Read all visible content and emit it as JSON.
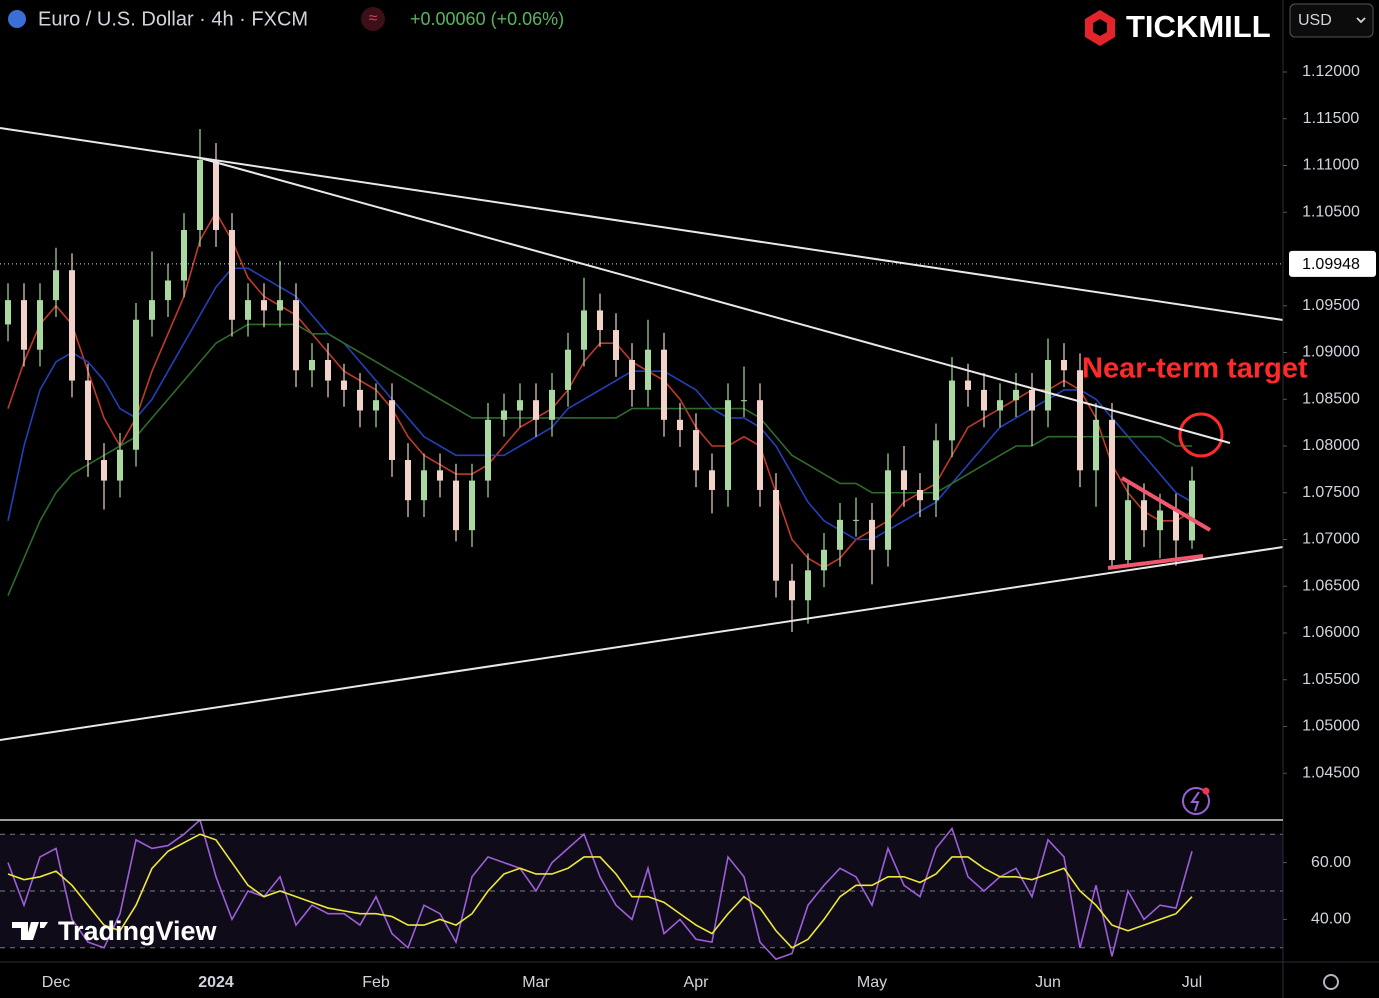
{
  "brand": "TICKMILL",
  "currency": "USD",
  "watermark": "TradingView",
  "chart_data": [
    {
      "type": "candlestick",
      "title": "Euro / U.S. Dollar · 4h · FXCM",
      "change": "+0.00060 (+0.06%)",
      "annotation": "Near-term target",
      "categories": [
        null,
        null,
        null,
        "Dec",
        null,
        null,
        null,
        null,
        null,
        null,
        null,
        null,
        null,
        "2024",
        null,
        null,
        null,
        null,
        null,
        null,
        null,
        null,
        null,
        "Feb",
        null,
        null,
        null,
        null,
        null,
        null,
        null,
        null,
        null,
        "Mar",
        null,
        null,
        null,
        null,
        null,
        null,
        null,
        null,
        null,
        "Apr",
        null,
        null,
        null,
        null,
        null,
        null,
        null,
        null,
        null,
        null,
        "May",
        null,
        null,
        null,
        null,
        null,
        null,
        null,
        null,
        null,
        null,
        "Jun",
        null,
        null,
        null,
        null,
        null,
        null,
        null,
        null,
        "Jul"
      ],
      "open": [
        1.093,
        1.0956,
        1.0903,
        1.0956,
        1.0988,
        1.087,
        1.0785,
        1.0763,
        1.0796,
        1.0935,
        1.0956,
        1.0977,
        1.1031,
        1.1106,
        1.1031,
        1.0935,
        1.0956,
        1.0945,
        1.0956,
        1.0881,
        1.0892,
        1.087,
        1.086,
        1.0838,
        1.0849,
        1.0785,
        1.0742,
        1.0774,
        1.0763,
        1.071,
        1.0763,
        1.0828,
        1.0838,
        1.0849,
        1.0828,
        1.086,
        1.0903,
        1.0945,
        1.0924,
        1.0892,
        1.086,
        1.0903,
        1.0828,
        1.0817,
        1.0774,
        1.0753,
        1.0849,
        1.0849,
        1.0753,
        1.0656,
        1.0635,
        1.0667,
        1.0689,
        1.0721,
        1.0721,
        1.0689,
        1.0774,
        1.0753,
        1.0742,
        1.0806,
        1.087,
        1.086,
        1.0838,
        1.0849,
        1.086,
        1.0838,
        1.0892,
        1.0881,
        1.0774,
        1.0828,
        1.0678,
        1.0742,
        1.071,
        1.0731,
        1.0699
      ],
      "high": [
        1.0974,
        1.0974,
        1.0974,
        1.1012,
        1.1006,
        1.0888,
        1.0803,
        1.0814,
        1.0953,
        1.1008,
        1.0995,
        1.1049,
        1.1139,
        1.1124,
        1.1049,
        1.0974,
        1.0974,
        1.0998,
        1.0974,
        1.091,
        1.091,
        1.0888,
        1.0878,
        1.0867,
        1.0867,
        1.0803,
        1.0792,
        1.0792,
        1.0781,
        1.0781,
        1.0846,
        1.0856,
        1.0867,
        1.0867,
        1.0878,
        1.0921,
        1.098,
        1.0963,
        1.0942,
        1.091,
        1.0935,
        1.0921,
        1.0846,
        1.0835,
        1.0792,
        1.0867,
        1.0885,
        1.0867,
        1.0771,
        1.0674,
        1.0685,
        1.0707,
        1.0739,
        1.0745,
        1.0739,
        1.0792,
        1.08,
        1.0771,
        1.0824,
        1.0895,
        1.0888,
        1.0878,
        1.0867,
        1.0878,
        1.0878,
        1.0915,
        1.091,
        1.0899,
        1.0846,
        1.0846,
        1.076,
        1.076,
        1.0749,
        1.0749,
        1.0778
      ],
      "low": [
        1.0912,
        1.0885,
        1.0885,
        1.0938,
        1.0852,
        1.0767,
        1.0732,
        1.0745,
        1.0778,
        1.0917,
        1.0938,
        1.0959,
        1.1013,
        1.1013,
        1.0917,
        1.0917,
        1.0927,
        1.0927,
        1.0863,
        1.0863,
        1.0852,
        1.0842,
        1.082,
        1.082,
        1.0767,
        1.0724,
        1.0724,
        1.0745,
        1.0698,
        1.0692,
        1.0745,
        1.081,
        1.082,
        1.081,
        1.081,
        1.0842,
        1.0885,
        1.0906,
        1.0874,
        1.0842,
        1.0842,
        1.081,
        1.0799,
        1.0756,
        1.0728,
        1.0735,
        1.0831,
        1.0735,
        1.0638,
        1.0601,
        1.061,
        1.0649,
        1.0671,
        1.0703,
        1.0652,
        1.0671,
        1.0735,
        1.0724,
        1.0724,
        1.0788,
        1.0842,
        1.082,
        1.082,
        1.0831,
        1.08,
        1.082,
        1.0863,
        1.0756,
        1.0735,
        1.0668,
        1.067,
        1.0692,
        1.068,
        1.0672,
        1.069
      ],
      "close": [
        1.0956,
        1.0903,
        1.0956,
        1.0988,
        1.087,
        1.0785,
        1.0763,
        1.0796,
        1.0935,
        1.0956,
        1.0977,
        1.1031,
        1.1106,
        1.1031,
        1.0935,
        1.0956,
        1.0945,
        1.0956,
        1.0881,
        1.0892,
        1.087,
        1.086,
        1.0838,
        1.0849,
        1.0785,
        1.0742,
        1.0774,
        1.0763,
        1.071,
        1.0763,
        1.0828,
        1.0838,
        1.0849,
        1.0828,
        1.086,
        1.0903,
        1.0945,
        1.0924,
        1.0892,
        1.086,
        1.0903,
        1.0828,
        1.0817,
        1.0774,
        1.0753,
        1.0849,
        1.0849,
        1.0753,
        1.0656,
        1.0635,
        1.0667,
        1.0689,
        1.0721,
        1.0721,
        1.0689,
        1.0774,
        1.0753,
        1.0742,
        1.0806,
        1.087,
        1.086,
        1.0838,
        1.0849,
        1.086,
        1.0838,
        1.0892,
        1.0881,
        1.0774,
        1.0828,
        1.0678,
        1.0742,
        1.071,
        1.0731,
        1.0699,
        1.0763
      ],
      "up_color": "#a9d9a0",
      "down_color": "#f1d3c9",
      "series": [
        {
          "color": "#c0392b",
          "values": [
            1.084,
            1.089,
            1.093,
            1.095,
            1.093,
            1.088,
            1.083,
            1.08,
            1.083,
            1.088,
            1.092,
            1.096,
            1.102,
            1.105,
            1.102,
            1.098,
            1.096,
            1.095,
            1.094,
            1.092,
            1.09,
            1.088,
            1.087,
            1.086,
            1.084,
            1.081,
            1.079,
            1.078,
            1.077,
            1.077,
            1.078,
            1.08,
            1.082,
            1.083,
            1.084,
            1.086,
            1.089,
            1.091,
            1.091,
            1.089,
            1.088,
            1.087,
            1.085,
            1.082,
            1.08,
            1.08,
            1.081,
            1.08,
            1.075,
            1.07,
            1.068,
            1.067,
            1.068,
            1.07,
            1.071,
            1.072,
            1.074,
            1.075,
            1.076,
            1.079,
            1.082,
            1.083,
            1.084,
            1.085,
            1.086,
            1.086,
            1.087,
            1.086,
            1.083,
            1.078,
            1.075,
            1.073,
            1.072,
            1.072,
            1.073
          ]
        },
        {
          "color": "#2340b8",
          "values": [
            1.072,
            1.08,
            1.086,
            1.089,
            1.09,
            1.089,
            1.087,
            1.084,
            1.083,
            1.085,
            1.088,
            1.091,
            1.094,
            1.097,
            1.099,
            1.099,
            1.098,
            1.097,
            1.096,
            1.094,
            1.092,
            1.091,
            1.089,
            1.087,
            1.085,
            1.083,
            1.081,
            1.08,
            1.079,
            1.079,
            1.079,
            1.079,
            1.08,
            1.081,
            1.082,
            1.084,
            1.085,
            1.086,
            1.087,
            1.088,
            1.088,
            1.088,
            1.087,
            1.086,
            1.084,
            1.083,
            1.083,
            1.082,
            1.08,
            1.077,
            1.074,
            1.072,
            1.071,
            1.07,
            1.07,
            1.071,
            1.072,
            1.073,
            1.074,
            1.076,
            1.078,
            1.08,
            1.082,
            1.083,
            1.084,
            1.085,
            1.086,
            1.086,
            1.085,
            1.083,
            1.081,
            1.079,
            1.077,
            1.075,
            1.074
          ]
        },
        {
          "color": "#2f6b2a",
          "values": [
            1.064,
            1.068,
            1.072,
            1.075,
            1.077,
            1.078,
            1.079,
            1.08,
            1.081,
            1.083,
            1.085,
            1.087,
            1.089,
            1.091,
            1.092,
            1.093,
            1.093,
            1.093,
            1.093,
            1.092,
            1.092,
            1.091,
            1.09,
            1.089,
            1.088,
            1.087,
            1.086,
            1.085,
            1.084,
            1.083,
            1.083,
            1.083,
            1.083,
            1.083,
            1.083,
            1.083,
            1.083,
            1.083,
            1.083,
            1.084,
            1.084,
            1.084,
            1.084,
            1.084,
            1.084,
            1.084,
            1.084,
            1.083,
            1.081,
            1.079,
            1.078,
            1.077,
            1.076,
            1.076,
            1.075,
            1.075,
            1.075,
            1.075,
            1.075,
            1.076,
            1.077,
            1.078,
            1.079,
            1.08,
            1.08,
            1.081,
            1.081,
            1.081,
            1.081,
            1.081,
            1.081,
            1.081,
            1.081,
            1.08,
            1.08
          ]
        }
      ],
      "ylim": [
        1.04,
        1.1277
      ],
      "yticks": [
        {
          "value": 1.12,
          "label": "1.12000"
        },
        {
          "value": 1.115,
          "label": "1.11500"
        },
        {
          "value": 1.11,
          "label": "1.11000"
        },
        {
          "value": 1.105,
          "label": "1.10500"
        },
        {
          "value": 1.095,
          "label": "1.09500"
        },
        {
          "value": 1.09,
          "label": "1.09000"
        },
        {
          "value": 1.085,
          "label": "1.08500"
        },
        {
          "value": 1.08,
          "label": "1.08000"
        },
        {
          "value": 1.075,
          "label": "1.07500"
        },
        {
          "value": 1.07,
          "label": "1.07000"
        },
        {
          "value": 1.065,
          "label": "1.06500"
        },
        {
          "value": 1.06,
          "label": "1.06000"
        },
        {
          "value": 1.055,
          "label": "1.05500"
        },
        {
          "value": 1.05,
          "label": "1.05000"
        },
        {
          "value": 1.045,
          "label": "1.04500"
        }
      ],
      "last_price": 1.09948,
      "grid": false
    },
    {
      "type": "line",
      "series": [
        {
          "color": "#9b5fd8",
          "values": [
            60,
            45,
            62,
            65,
            40,
            32,
            30,
            42,
            68,
            65,
            66,
            70,
            75,
            55,
            40,
            50,
            48,
            55,
            38,
            45,
            42,
            42,
            38,
            48,
            35,
            30,
            45,
            42,
            32,
            55,
            62,
            60,
            58,
            50,
            60,
            65,
            70,
            55,
            45,
            40,
            58,
            35,
            40,
            33,
            32,
            62,
            55,
            32,
            26,
            28,
            45,
            52,
            58,
            55,
            45,
            65,
            52,
            48,
            65,
            72,
            55,
            50,
            55,
            58,
            48,
            68,
            62,
            30,
            52,
            27,
            50,
            40,
            45,
            44,
            64
          ]
        },
        {
          "color": "#ece83a",
          "values": [
            56,
            54,
            55,
            57,
            52,
            45,
            38,
            36,
            45,
            58,
            64,
            67,
            70,
            68,
            60,
            52,
            48,
            50,
            48,
            46,
            44,
            43,
            42,
            42,
            41,
            38,
            38,
            40,
            38,
            42,
            50,
            56,
            58,
            56,
            56,
            58,
            62,
            62,
            56,
            48,
            48,
            46,
            42,
            38,
            35,
            42,
            48,
            44,
            36,
            30,
            33,
            40,
            48,
            52,
            52,
            55,
            55,
            53,
            56,
            62,
            62,
            58,
            55,
            55,
            54,
            56,
            58,
            50,
            45,
            38,
            36,
            38,
            40,
            42,
            48
          ]
        }
      ],
      "ylim": [
        25,
        75
      ],
      "yticks": [
        {
          "value": 60,
          "label": "60.00"
        },
        {
          "value": 40,
          "label": "40.00"
        }
      ],
      "reference_lines": [
        70,
        50,
        30
      ],
      "grid": false
    }
  ]
}
